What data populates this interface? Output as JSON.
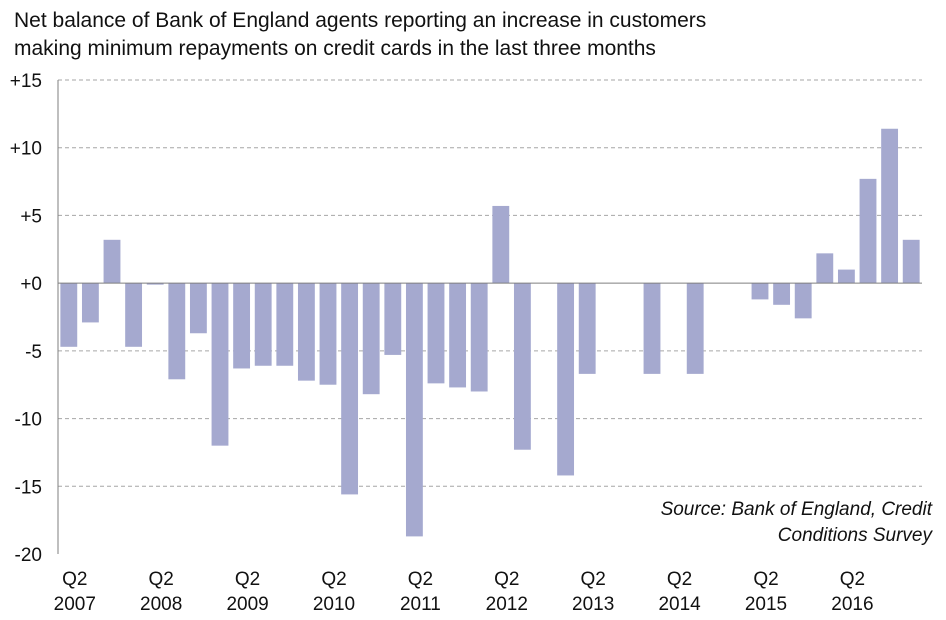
{
  "title_lines": [
    "Net balance of Bank of England agents reporting an increase in customers",
    "making minimum repayments on credit cards in the last three months"
  ],
  "source_lines": [
    "Source: Bank of England, Credit",
    "Conditions Survey"
  ],
  "colors": {
    "bar": "#a5a9cf",
    "grid": "#a6a6a6",
    "axis": "#7f7f7f",
    "text": "#111111"
  },
  "chart_data": {
    "type": "bar",
    "title": "Net balance of Bank of England agents reporting an increase in customers making minimum repayments on credit cards in the last three months",
    "ylim": [
      -20,
      15
    ],
    "yticks": [
      15,
      10,
      5,
      0,
      -5,
      -10,
      -15,
      -20
    ],
    "ytick_labels": [
      "+15",
      "+10",
      "+5",
      "+0",
      "-5",
      "-10",
      "-15",
      "-20"
    ],
    "grid": true,
    "grid_style": "dashed",
    "x_tick_labels": [
      {
        "quarter": "Q2",
        "year": "2007"
      },
      {
        "quarter": "Q2",
        "year": "2008"
      },
      {
        "quarter": "Q2",
        "year": "2009"
      },
      {
        "quarter": "Q2",
        "year": "2010"
      },
      {
        "quarter": "Q2",
        "year": "2011"
      },
      {
        "quarter": "Q2",
        "year": "2012"
      },
      {
        "quarter": "Q2",
        "year": "2013"
      },
      {
        "quarter": "Q2",
        "year": "2014"
      },
      {
        "quarter": "Q2",
        "year": "2015"
      },
      {
        "quarter": "Q2",
        "year": "2016"
      }
    ],
    "categories": [
      "2007 Q2",
      "2007 Q3",
      "2007 Q4",
      "2008 Q1",
      "2008 Q2",
      "2008 Q3",
      "2008 Q4",
      "2009 Q1",
      "2009 Q2",
      "2009 Q3",
      "2009 Q4",
      "2010 Q1",
      "2010 Q2",
      "2010 Q3",
      "2010 Q4",
      "2011 Q1",
      "2011 Q2",
      "2011 Q3",
      "2011 Q4",
      "2012 Q1",
      "2012 Q2",
      "2012 Q3",
      "2012 Q4",
      "2013 Q1",
      "2013 Q2",
      "2013 Q3",
      "2013 Q4",
      "2014 Q1",
      "2014 Q2",
      "2014 Q3",
      "2014 Q4",
      "2015 Q1",
      "2015 Q2",
      "2015 Q3",
      "2015 Q4",
      "2016 Q1",
      "2016 Q2",
      "2016 Q3",
      "2016 Q4",
      "2017 Q1"
    ],
    "values": [
      -4.7,
      -2.9,
      3.2,
      -4.7,
      0.0,
      -7.1,
      -3.7,
      -12.0,
      -6.3,
      -6.1,
      -6.1,
      -7.2,
      -7.5,
      -15.6,
      -8.2,
      -5.3,
      -18.7,
      -7.4,
      -7.7,
      -8.0,
      5.7,
      -12.3,
      0,
      -14.2,
      -6.7,
      0,
      0,
      -6.7,
      0,
      -6.7,
      0,
      0,
      -1.2,
      -1.6,
      -2.6,
      2.2,
      1.0,
      7.7,
      11.4,
      3.2
    ]
  }
}
